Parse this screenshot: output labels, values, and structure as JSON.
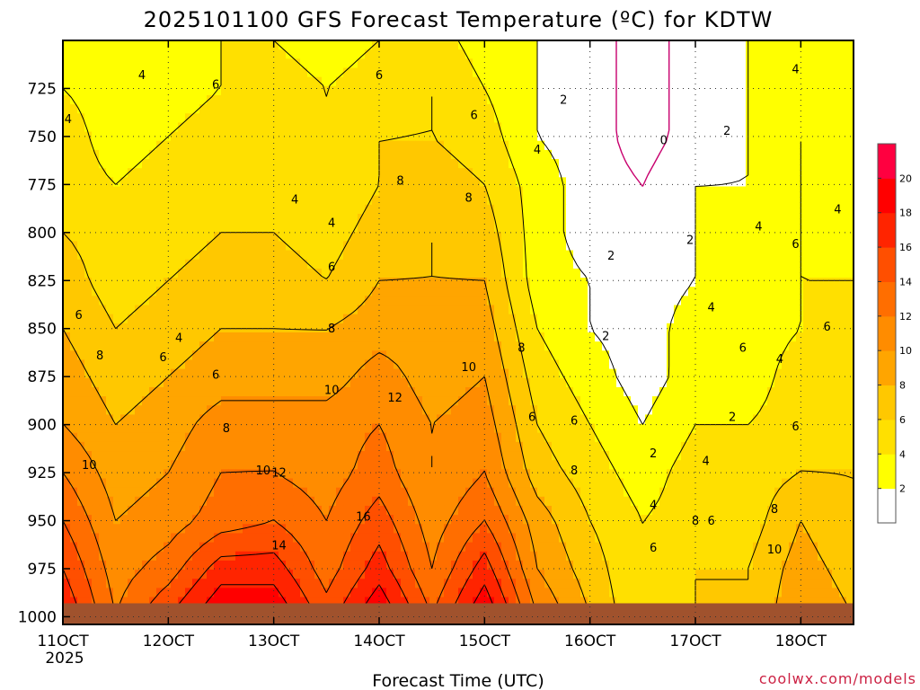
{
  "chart_data": {
    "type": "heatmap",
    "title": "2025101100 GFS Forecast Temperature (ºC) for KDTW",
    "xlabel": "Forecast Time (UTC)",
    "ylabel": "",
    "credit": "coolwx.com/models",
    "x_ticks": [
      "11OCT",
      "12OCT",
      "13OCT",
      "14OCT",
      "15OCT",
      "16OCT",
      "17OCT",
      "18OCT"
    ],
    "x_tick_year": "2025",
    "xlim_days": [
      11.0,
      18.5
    ],
    "y_ticks": [
      725,
      750,
      775,
      800,
      825,
      850,
      875,
      900,
      925,
      950,
      975,
      1000
    ],
    "ylim_hpa": [
      700,
      1004
    ],
    "y_axis_reversed": true,
    "grid": true,
    "colorbar_levels": [
      2,
      4,
      6,
      8,
      10,
      12,
      14,
      16,
      18,
      20
    ],
    "colorbar_colors": [
      "#ffffff",
      "#ffff00",
      "#ffe000",
      "#ffc800",
      "#ffa500",
      "#ff8c00",
      "#ff6e00",
      "#ff4f00",
      "#ff2400",
      "#ff0000",
      "#ff0040"
    ],
    "ground_color": "#a0522d",
    "x_days": [
      11.0,
      11.5,
      12.0,
      12.5,
      13.0,
      13.5,
      14.0,
      14.5,
      15.0,
      15.5,
      16.0,
      16.5,
      17.0,
      17.5,
      18.0,
      18.5
    ],
    "levels_hpa": [
      1000,
      975,
      950,
      925,
      900,
      875,
      850,
      825,
      800,
      775,
      750,
      725,
      700
    ],
    "temperature_c": [
      [
        18,
        12,
        16,
        20,
        20,
        15,
        20,
        14,
        20,
        12,
        8,
        4,
        6,
        6,
        10,
        8
      ],
      [
        16,
        11,
        13,
        17,
        17,
        13,
        17,
        12,
        17,
        10,
        7,
        4,
        6,
        6,
        9,
        7
      ],
      [
        14,
        10,
        11,
        13,
        14,
        12,
        15,
        11,
        14,
        9,
        6,
        4,
        5,
        5,
        8,
        6
      ],
      [
        12,
        9,
        10,
        12,
        12,
        11,
        13,
        10,
        12,
        7,
        5,
        3,
        5,
        5,
        6,
        6
      ],
      [
        10,
        8,
        9,
        11,
        11,
        11,
        12,
        10,
        11,
        6,
        4,
        2,
        4,
        4,
        5,
        5
      ],
      [
        9,
        7,
        8,
        9,
        9,
        9,
        11,
        9,
        10,
        5,
        3,
        1,
        3,
        3,
        5,
        5
      ],
      [
        8,
        6,
        7,
        8,
        8,
        8,
        9,
        9,
        9,
        4,
        2,
        1,
        3,
        3,
        4,
        5
      ],
      [
        7,
        5,
        6,
        7,
        7,
        6,
        8,
        8,
        8,
        3,
        2,
        1,
        2,
        3,
        4,
        4
      ],
      [
        6,
        5,
        5,
        6,
        6,
        5,
        7,
        8,
        7,
        3,
        1,
        0,
        2,
        3,
        4,
        3
      ],
      [
        5,
        4,
        5,
        5,
        5,
        4,
        6,
        7,
        6,
        3,
        1,
        0,
        2,
        2,
        4,
        3
      ],
      [
        5,
        3,
        4,
        5,
        5,
        4,
        6,
        6,
        5,
        2,
        1,
        -1,
        1,
        2,
        4,
        3
      ],
      [
        4,
        3,
        3,
        4,
        5,
        4,
        5,
        6,
        4,
        2,
        1,
        -1,
        1,
        2,
        3,
        3
      ],
      [
        3,
        3,
        3,
        4,
        4,
        3,
        4,
        5,
        3,
        2,
        1,
        -1,
        1,
        2,
        3,
        3
      ]
    ],
    "contour_labels": [
      {
        "text": "4",
        "day": 11.75,
        "hpa": 720
      },
      {
        "text": "6",
        "day": 12.45,
        "hpa": 725
      },
      {
        "text": "6",
        "day": 14.0,
        "hpa": 720
      },
      {
        "text": "6",
        "day": 14.9,
        "hpa": 741
      },
      {
        "text": "4",
        "day": 11.05,
        "hpa": 743
      },
      {
        "text": "2",
        "day": 15.75,
        "hpa": 733
      },
      {
        "text": "4",
        "day": 15.5,
        "hpa": 759
      },
      {
        "text": "0",
        "day": 16.7,
        "hpa": 754
      },
      {
        "text": "2",
        "day": 17.3,
        "hpa": 749
      },
      {
        "text": "4",
        "day": 17.95,
        "hpa": 717
      },
      {
        "text": "4",
        "day": 13.2,
        "hpa": 785
      },
      {
        "text": "8",
        "day": 14.2,
        "hpa": 775
      },
      {
        "text": "8",
        "day": 14.85,
        "hpa": 784
      },
      {
        "text": "4",
        "day": 13.55,
        "hpa": 797
      },
      {
        "text": "4",
        "day": 18.35,
        "hpa": 790
      },
      {
        "text": "4",
        "day": 17.6,
        "hpa": 799
      },
      {
        "text": "2",
        "day": 16.95,
        "hpa": 806
      },
      {
        "text": "6",
        "day": 17.95,
        "hpa": 808
      },
      {
        "text": "2",
        "day": 16.2,
        "hpa": 814
      },
      {
        "text": "6",
        "day": 13.55,
        "hpa": 820
      },
      {
        "text": "6",
        "day": 11.15,
        "hpa": 845
      },
      {
        "text": "8",
        "day": 13.55,
        "hpa": 852
      },
      {
        "text": "4",
        "day": 17.15,
        "hpa": 841
      },
      {
        "text": "4",
        "day": 12.1,
        "hpa": 857
      },
      {
        "text": "6",
        "day": 18.25,
        "hpa": 851
      },
      {
        "text": "2",
        "day": 16.15,
        "hpa": 856
      },
      {
        "text": "6",
        "day": 17.45,
        "hpa": 862
      },
      {
        "text": "8",
        "day": 15.35,
        "hpa": 862
      },
      {
        "text": "8",
        "day": 11.35,
        "hpa": 866
      },
      {
        "text": "6",
        "day": 11.95,
        "hpa": 867
      },
      {
        "text": "4",
        "day": 17.8,
        "hpa": 868
      },
      {
        "text": "6",
        "day": 12.45,
        "hpa": 876
      },
      {
        "text": "10",
        "day": 14.85,
        "hpa": 872
      },
      {
        "text": "10",
        "day": 13.55,
        "hpa": 884
      },
      {
        "text": "12",
        "day": 14.15,
        "hpa": 888
      },
      {
        "text": "6",
        "day": 15.45,
        "hpa": 898
      },
      {
        "text": "6",
        "day": 15.85,
        "hpa": 900
      },
      {
        "text": "2",
        "day": 17.35,
        "hpa": 898
      },
      {
        "text": "6",
        "day": 17.95,
        "hpa": 903
      },
      {
        "text": "8",
        "day": 12.55,
        "hpa": 904
      },
      {
        "text": "2",
        "day": 16.6,
        "hpa": 917
      },
      {
        "text": "4",
        "day": 17.1,
        "hpa": 921
      },
      {
        "text": "10",
        "day": 11.25,
        "hpa": 923
      },
      {
        "text": "10",
        "day": 12.9,
        "hpa": 926
      },
      {
        "text": "12",
        "day": 13.05,
        "hpa": 927
      },
      {
        "text": "8",
        "day": 15.85,
        "hpa": 926
      },
      {
        "text": "4",
        "day": 16.6,
        "hpa": 944
      },
      {
        "text": "8",
        "day": 17.0,
        "hpa": 952
      },
      {
        "text": "6",
        "day": 17.15,
        "hpa": 952
      },
      {
        "text": "8",
        "day": 17.75,
        "hpa": 946
      },
      {
        "text": "16",
        "day": 13.85,
        "hpa": 950
      },
      {
        "text": "14",
        "day": 13.05,
        "hpa": 965
      },
      {
        "text": "6",
        "day": 16.6,
        "hpa": 966
      },
      {
        "text": "10",
        "day": 17.75,
        "hpa": 967
      }
    ]
  }
}
